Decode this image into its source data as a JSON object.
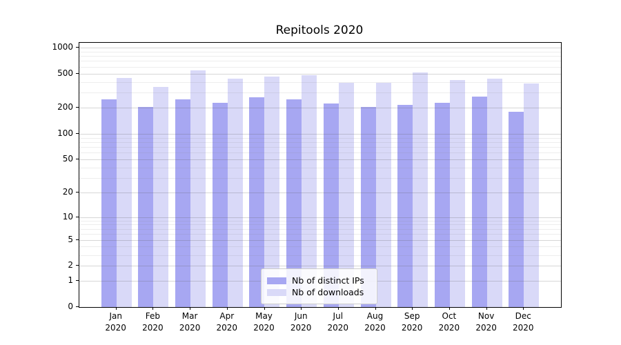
{
  "chart_data": {
    "type": "bar",
    "title": "Repitools 2020",
    "categories": [
      "Jan",
      "Feb",
      "Mar",
      "Apr",
      "May",
      "Jun",
      "Jul",
      "Aug",
      "Sep",
      "Oct",
      "Nov",
      "Dec"
    ],
    "category_second_line": "2020",
    "series": [
      {
        "name": "Nb of distinct IPs",
        "color": "#a7a7f2",
        "values": [
          253,
          205,
          250,
          230,
          268,
          251,
          224,
          205,
          218,
          231,
          270,
          180
        ]
      },
      {
        "name": "Nb of downloads",
        "color": "#d9d9f8",
        "values": [
          445,
          350,
          540,
          434,
          461,
          482,
          390,
          391,
          515,
          420,
          440,
          385
        ]
      }
    ],
    "yscale": "log1p",
    "yticks": [
      0,
      1,
      2,
      5,
      10,
      20,
      50,
      100,
      200,
      500,
      1000
    ],
    "yminor_gridlines": [
      3,
      4,
      6,
      7,
      8,
      9,
      30,
      40,
      60,
      70,
      80,
      90,
      300,
      400,
      600,
      700,
      800,
      900
    ],
    "ylim": [
      0,
      1140
    ],
    "grid": true,
    "legend": {
      "position": "lower center"
    },
    "colors": {
      "grid_major": "rgba(90,90,90,0.25)",
      "grid_minor": "rgba(130,130,130,0.14)",
      "spine": "#000000",
      "background": "#ffffff"
    }
  }
}
